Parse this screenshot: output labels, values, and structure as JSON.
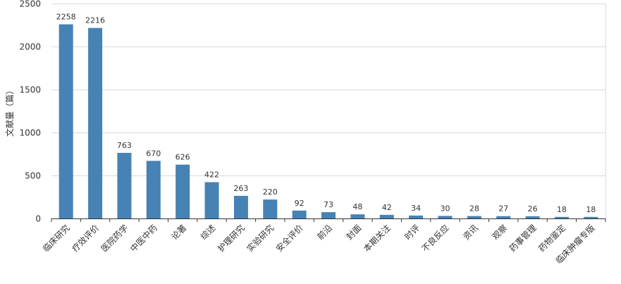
{
  "chart_data": {
    "type": "bar",
    "ylabel": "文献量（篇）",
    "xlabel": "",
    "ylim": [
      0,
      2500
    ],
    "yticks": [
      0,
      500,
      1000,
      1500,
      2000,
      2500
    ],
    "grid": true,
    "bar_color": "#4682B4",
    "categories": [
      "临床研究",
      "疗效评价",
      "医院药学",
      "中医中药",
      "论著",
      "综述",
      "护理研究",
      "实验研究",
      "安全评价",
      "前沿",
      "封面",
      "本期关注",
      "时评",
      "不良反应",
      "资讯",
      "观察",
      "药事管理",
      "药物鉴定",
      "临床肿瘤专版"
    ],
    "values": [
      2258,
      2216,
      763,
      670,
      626,
      422,
      263,
      220,
      92,
      73,
      48,
      42,
      34,
      30,
      28,
      27,
      26,
      18,
      18
    ]
  }
}
